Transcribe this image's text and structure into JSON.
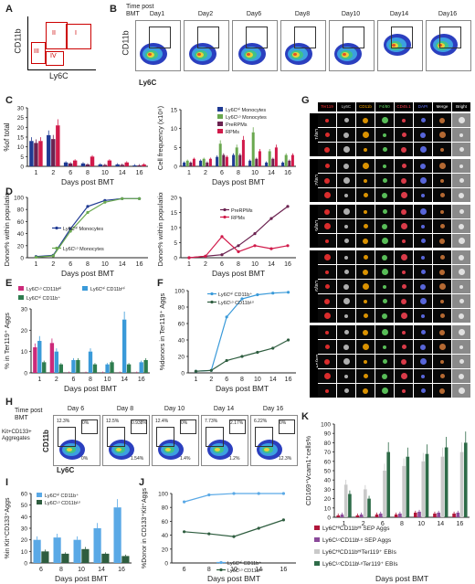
{
  "panel_labels": [
    "A",
    "B",
    "C",
    "D",
    "E",
    "F",
    "G",
    "H",
    "I",
    "J",
    "K"
  ],
  "panelA": {
    "xlabel": "Ly6C",
    "ylabel": "CD11b",
    "gates": [
      "I",
      "II",
      "III",
      "IV"
    ]
  },
  "panelB": {
    "header": [
      "Time post",
      "BMT"
    ],
    "days": [
      "Day1",
      "Day2",
      "Day6",
      "Day8",
      "Day10",
      "Day14",
      "Day16"
    ],
    "ylabel": "CD11b",
    "xlabel": "Ly6C"
  },
  "panelH": {
    "header": [
      "Time post",
      "BMT"
    ],
    "ylabel_lines": [
      "Kit+CD133+",
      "Aggregates"
    ],
    "cd11b": "CD11b",
    "xlabel": "Ly6C",
    "panels": [
      {
        "day": "Day 6",
        "tl": "12.3%",
        "tr": "0%",
        "br": "0%"
      },
      {
        "day": "Day 8",
        "tl": "12.5%",
        "tr": "0.938%",
        "br": "1.54%"
      },
      {
        "day": "Day 10",
        "tl": "12.4%",
        "tr": "0%",
        "br": "1.4%"
      },
      {
        "day": "Day 14",
        "tl": "7.73%",
        "tr": "2.17%",
        "br": "1.2%"
      },
      {
        "day": "Day 16",
        "tl": "6.22%",
        "tr": "0%",
        "br": "12.3%"
      }
    ]
  },
  "panelG": {
    "channels": [
      "Ter119",
      "Ly6C",
      "CD11b",
      "F4/80",
      "CD45.1",
      "DAPI",
      "Merge",
      "Bright"
    ],
    "channel_colors": [
      "#ff3333",
      "#cccccc",
      "#ffaa00",
      "#66dd66",
      "#ff4455",
      "#6677ff",
      "#ffffff",
      "#ffffff"
    ],
    "days": [
      "Day1",
      "Day2",
      "Day6",
      "Day9",
      "Day14"
    ]
  },
  "chart_data": [
    {
      "panel": "C-left",
      "type": "bar",
      "ylabel": "%of total",
      "xlabel": "Days post BMT",
      "categories": [
        "1",
        "2",
        "6",
        "8",
        "10",
        "14",
        "16"
      ],
      "ylim": [
        0,
        30
      ],
      "yticks": [
        0,
        5,
        10,
        15,
        20,
        25,
        30
      ],
      "series": [
        {
          "color": "#1f3a93",
          "values": [
            13,
            16,
            2,
            1.5,
            1,
            1,
            0.5
          ]
        },
        {
          "color": "#6b2250",
          "values": [
            12,
            14,
            1.5,
            1,
            0.7,
            0.8,
            0.5
          ]
        },
        {
          "color": "#d11a4a",
          "values": [
            13,
            21,
            3,
            5,
            3,
            2,
            1
          ]
        }
      ]
    },
    {
      "panel": "C-right",
      "type": "bar",
      "ylabel": "Cell frequency (x10⁶)",
      "xlabel": "Days post BMT",
      "categories": [
        "1",
        "2",
        "6",
        "8",
        "10",
        "14",
        "16"
      ],
      "ylim": [
        0,
        15
      ],
      "yticks": [
        0,
        5,
        10,
        15
      ],
      "legend": [
        "Ly6Cᴴⁱ Monocytes",
        "Ly6Cᴸᵒ Monocytes",
        "PreRPMs",
        "RPMs"
      ],
      "series": [
        {
          "name": "Ly6Cᴴⁱ Monocytes",
          "color": "#1f3a93",
          "values": [
            1,
            1.5,
            2.5,
            3,
            1.5,
            1,
            1
          ]
        },
        {
          "name": "Ly6Cᴸᵒ Monocytes",
          "color": "#6aa84f",
          "values": [
            1.5,
            2,
            6,
            5,
            9,
            4,
            3
          ]
        },
        {
          "name": "PreRPMs",
          "color": "#6b2250",
          "values": [
            1,
            1,
            3,
            3,
            2,
            2,
            1.5
          ]
        },
        {
          "name": "RPMs",
          "color": "#d11a4a",
          "values": [
            2,
            2,
            2.5,
            7,
            4,
            5,
            3
          ]
        }
      ]
    },
    {
      "panel": "D-left",
      "type": "line",
      "ylabel": "Donor% within population",
      "xlabel": "Days post BMT",
      "categories": [
        "1",
        "2",
        "6",
        "8",
        "10",
        "14",
        "16"
      ],
      "ylim": [
        0,
        100
      ],
      "yticks": [
        0,
        20,
        40,
        60,
        80,
        100
      ],
      "legend": [
        "Ly6Cᴴⁱ Monocytes",
        "Ly6Cᴸᵒ Monocytes"
      ],
      "series": [
        {
          "name": "Ly6Cᴴⁱ Monocytes",
          "color": "#1f3a93",
          "values": [
            2,
            4,
            48,
            85,
            95,
            98,
            98
          ]
        },
        {
          "name": "Ly6Cᴸᵒ Monocytes",
          "color": "#6aa84f",
          "values": [
            1,
            3,
            44,
            75,
            92,
            98,
            98
          ]
        }
      ]
    },
    {
      "panel": "D-right",
      "type": "line",
      "ylabel": "Donor% within population",
      "xlabel": "Days post BMT",
      "categories": [
        "1",
        "2",
        "6",
        "8",
        "10",
        "14",
        "16"
      ],
      "ylim": [
        0,
        20
      ],
      "yticks": [
        0,
        5,
        10,
        15,
        20
      ],
      "legend": [
        "PreRPMs",
        "RPMs"
      ],
      "series": [
        {
          "name": "PreRPMs",
          "color": "#6b2250",
          "values": [
            0,
            0.5,
            1,
            4,
            8,
            13,
            17
          ]
        },
        {
          "name": "RPMs",
          "color": "#d11a4a",
          "values": [
            0,
            0.5,
            7,
            2,
            4,
            3,
            4
          ]
        }
      ]
    },
    {
      "panel": "E",
      "type": "bar",
      "ylabel": "% in Ter119⁺ Aggs",
      "xlabel": "Days post BMT",
      "categories": [
        "1",
        "2",
        "6",
        "8",
        "10",
        "14",
        "16"
      ],
      "ylim": [
        0,
        30
      ],
      "yticks": [
        0,
        10,
        20,
        30
      ],
      "legend": [
        "Ly6Cᴸᵒ CD11bᴴⁱ",
        "Ly6Cᴴⁱ CD11bᴴⁱ",
        "Ly6Cᴴⁱ CD11b⁺"
      ],
      "series": [
        {
          "name": "Ly6Cᴸᵒ CD11bᴴⁱ",
          "color": "#cc2a7a",
          "values": [
            12,
            14,
            0,
            0,
            0,
            0,
            0
          ]
        },
        {
          "name": "Ly6Cᴴⁱ CD11bᴴⁱ",
          "color": "#3a9ad9",
          "values": [
            15,
            10,
            6,
            10,
            4,
            25,
            5
          ]
        },
        {
          "name": "Ly6Cᴴⁱ CD11b⁺",
          "color": "#2e7d4f",
          "values": [
            5,
            4,
            6,
            4,
            5,
            4,
            6
          ]
        }
      ]
    },
    {
      "panel": "F",
      "type": "line",
      "ylabel": "%donors in Ter119⁺ Aggs",
      "xlabel": "Days post BMT",
      "categories": [
        "1",
        "2",
        "6",
        "8",
        "10",
        "14",
        "16"
      ],
      "ylim": [
        0,
        100
      ],
      "yticks": [
        0,
        20,
        40,
        60,
        80,
        100
      ],
      "legend": [
        "Ly6Cᴴⁱ CD11b⁺",
        "Ly6Cᴸᵒ CD11bᴸᵒ"
      ],
      "series": [
        {
          "name": "Ly6Cᴴⁱ CD11b⁺",
          "color": "#3a9ad9",
          "values": [
            2,
            3,
            68,
            90,
            95,
            97,
            98
          ]
        },
        {
          "name": "Ly6Cᴸᵒ CD11bᴸᵒ",
          "color": "#2e5d3f",
          "values": [
            2,
            3,
            15,
            20,
            25,
            30,
            40
          ]
        }
      ]
    },
    {
      "panel": "I",
      "type": "bar",
      "ylabel": "%in Kit⁺CD133⁺Aggs",
      "xlabel": "Days post BMT",
      "categories": [
        "6",
        "8",
        "10",
        "14",
        "16"
      ],
      "ylim": [
        0,
        60
      ],
      "yticks": [
        0,
        10,
        20,
        30,
        40,
        50,
        60
      ],
      "legend": [
        "Ly6Cᴴⁱ CD11b⁺",
        "Ly6Cᴸᵒ CD11bᴸᵒ"
      ],
      "series": [
        {
          "name": "Ly6Cᴴⁱ CD11b⁺",
          "color": "#5aa9e6",
          "values": [
            20,
            22,
            20,
            30,
            48
          ]
        },
        {
          "name": "Ly6Cᴸᵒ CD11bᴸᵒ",
          "color": "#2e5d3f",
          "values": [
            10,
            8,
            12,
            8,
            6
          ]
        }
      ]
    },
    {
      "panel": "J",
      "type": "line",
      "ylabel": "%Donor in CD133⁺Kit⁺Aggs",
      "xlabel": "Days post BMT",
      "categories": [
        "6",
        "8",
        "10",
        "14",
        "16"
      ],
      "ylim": [
        0,
        100
      ],
      "yticks": [
        0,
        20,
        40,
        60,
        80,
        100
      ],
      "legend": [
        "Ly6Cᴴⁱ CD11b⁺",
        "Ly6Cᴸᵒ CD11bᴸᵒ"
      ],
      "series": [
        {
          "name": "Ly6Cᴴⁱ CD11b⁺",
          "color": "#5aa9e6",
          "values": [
            88,
            98,
            100,
            100,
            100
          ]
        },
        {
          "name": "Ly6Cᴸᵒ CD11bᴸᵒ",
          "color": "#2e5d3f",
          "values": [
            45,
            42,
            38,
            50,
            62
          ]
        }
      ]
    },
    {
      "panel": "K",
      "type": "bar",
      "ylabel": "CD169⁺Vcam1⁺cells%",
      "xlabel": "Days post BMT",
      "categories": [
        "1",
        "2",
        "6",
        "8",
        "10",
        "14",
        "16"
      ],
      "ylim": [
        0,
        100
      ],
      "yticks": [
        0,
        10,
        20,
        30,
        40,
        50,
        60,
        70,
        80,
        90,
        100
      ],
      "legend": [
        "Ly6CᴴⁱCD11bᴴⁱ SEP Aggs",
        "Ly6CᴸᵒCD11bᴸᵒ SEP Aggs",
        "Ly6CᴴⁱCD11bᴴⁱTer119⁺ EBIs",
        "Ly6CᴸᵒCD11bᴸᵒTer119⁺ EBIs"
      ],
      "series": [
        {
          "name": "Ly6CᴴⁱCD11bᴴⁱ SEP Aggs",
          "color": "#b0163a",
          "values": [
            2,
            2,
            3,
            3,
            5,
            4,
            4
          ]
        },
        {
          "name": "Ly6CᴸᵒCD11bᴸᵒ SEP Aggs",
          "color": "#8a4a9a",
          "values": [
            3,
            3,
            4,
            4,
            6,
            5,
            5
          ]
        },
        {
          "name": "Ly6CᴴⁱCD11bᴴⁱTer119⁺ EBIs",
          "color": "#c9c9c9",
          "values": [
            35,
            30,
            50,
            55,
            60,
            65,
            70
          ]
        },
        {
          "name": "Ly6CᴸᵒCD11bᴸᵒTer119⁺ EBIs",
          "color": "#2e6b48",
          "values": [
            25,
            20,
            70,
            65,
            68,
            75,
            80
          ]
        }
      ]
    }
  ]
}
